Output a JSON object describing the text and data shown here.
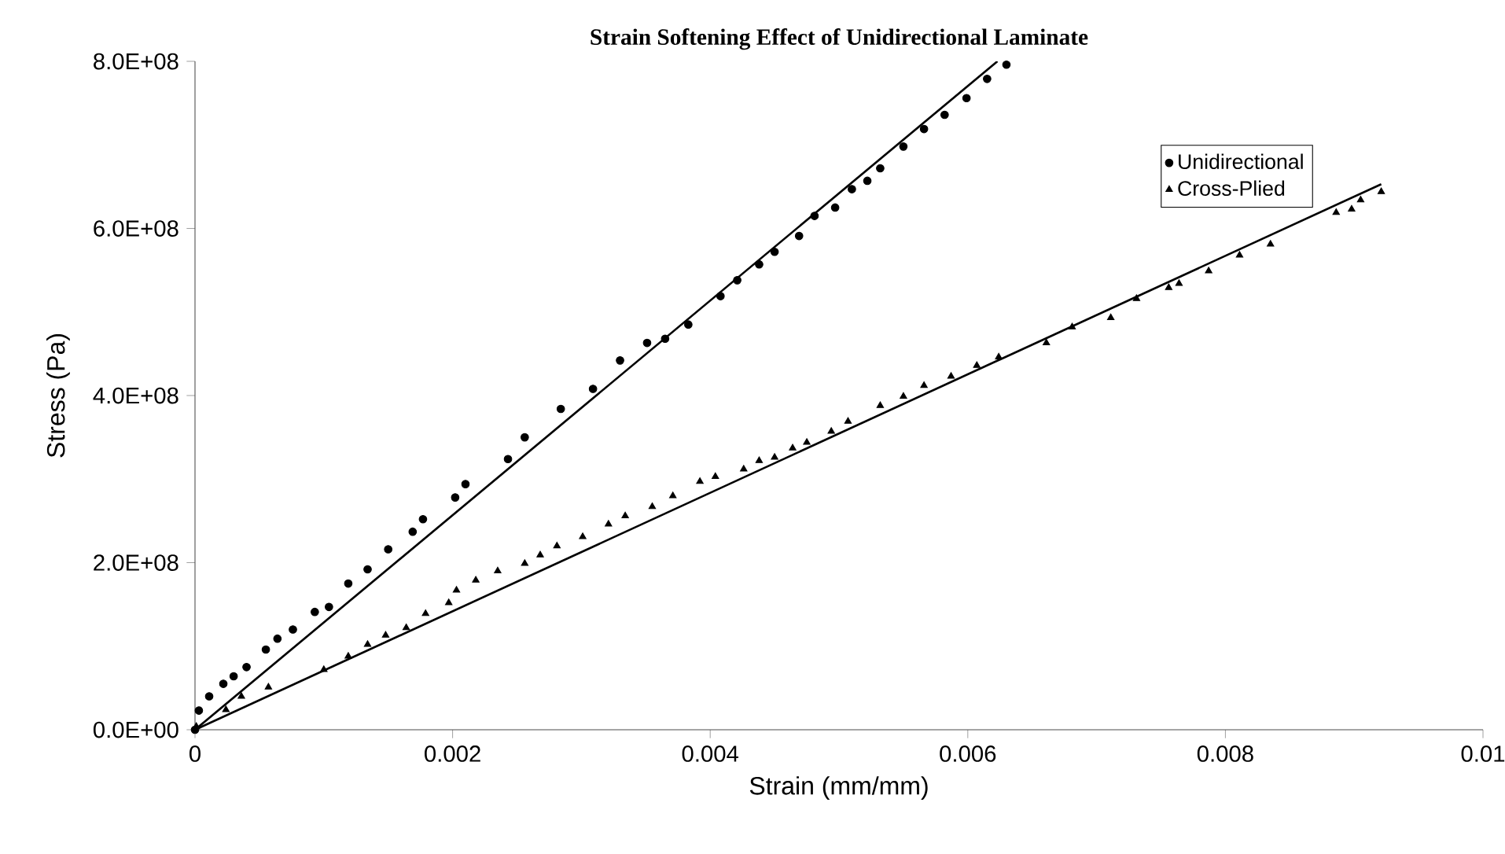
{
  "chart_data": {
    "type": "scatter",
    "title": "Strain Softening Effect of Unidirectional Laminate",
    "xlabel": "Strain (mm/mm)",
    "ylabel": "Stress (Pa)",
    "xlim": [
      0,
      0.01
    ],
    "ylim": [
      0,
      800000000
    ],
    "xticks": [
      0,
      0.002,
      0.004,
      0.006,
      0.008,
      0.01
    ],
    "yticks": [
      {
        "value": 0,
        "label": "0.0E+00"
      },
      {
        "value": 200000000,
        "label": "2.0E+08"
      },
      {
        "value": 400000000,
        "label": "4.0E+08"
      },
      {
        "value": 600000000,
        "label": "6.0E+08"
      },
      {
        "value": 800000000,
        "label": "8.0E+08"
      }
    ],
    "grid": false,
    "legend": "top right",
    "series": [
      {
        "name": "Unidirectional",
        "marker": "circle",
        "color": "#000000",
        "x": [
          0,
          3e-05,
          0.00011,
          0.00022,
          0.0003,
          0.0004,
          0.00055,
          0.00064,
          0.00076,
          0.00093,
          0.00104,
          0.00119,
          0.00134,
          0.0015,
          0.00169,
          0.00177,
          0.00202,
          0.0021,
          0.00243,
          0.00256,
          0.00284,
          0.00309,
          0.0033,
          0.00351,
          0.00365,
          0.00383,
          0.00408,
          0.00421,
          0.00438,
          0.0045,
          0.00469,
          0.00481,
          0.00497,
          0.0051,
          0.00522,
          0.00532,
          0.0055,
          0.00566,
          0.00582,
          0.00599,
          0.00615,
          0.0063
        ],
        "values": [
          0,
          23000000,
          40000000,
          55000000,
          64000000,
          75000000,
          96000000,
          109000000,
          120000000,
          141000000,
          147000000,
          175000000,
          192000000,
          216000000,
          237000000,
          252000000,
          278000000,
          294000000,
          324000000,
          350000000,
          384000000,
          408000000,
          442000000,
          463000000,
          468000000,
          485000000,
          519000000,
          538000000,
          557000000,
          572000000,
          591000000,
          615000000,
          625000000,
          647000000,
          657000000,
          672000000,
          698000000,
          719000000,
          736000000,
          756000000,
          779000000,
          796000000
        ]
      },
      {
        "name": "Cross-Plied",
        "marker": "triangle",
        "color": "#000000",
        "x": [
          1e-05,
          0.00024,
          0.00036,
          0.00057,
          0.001,
          0.00119,
          0.00134,
          0.00148,
          0.00164,
          0.00179,
          0.00197,
          0.00203,
          0.00218,
          0.00235,
          0.00256,
          0.00268,
          0.00281,
          0.00301,
          0.00321,
          0.00334,
          0.00355,
          0.00371,
          0.00392,
          0.00404,
          0.00426,
          0.00438,
          0.0045,
          0.00464,
          0.00475,
          0.00494,
          0.00507,
          0.00532,
          0.0055,
          0.00566,
          0.00587,
          0.00607,
          0.00624,
          0.00661,
          0.00681,
          0.00711,
          0.00731,
          0.00756,
          0.00764,
          0.00787,
          0.00811,
          0.00835,
          0.00886,
          0.00898,
          0.00905,
          0.00921
        ],
        "values": [
          4000000,
          24000000,
          40000000,
          51000000,
          72000000,
          88000000,
          102000000,
          113000000,
          122000000,
          139000000,
          152000000,
          167000000,
          179000000,
          190000000,
          199000000,
          209000000,
          220000000,
          231000000,
          246000000,
          256000000,
          267000000,
          280000000,
          297000000,
          303000000,
          312000000,
          322000000,
          326000000,
          337000000,
          344000000,
          357000000,
          369000000,
          388000000,
          399000000,
          412000000,
          423000000,
          436000000,
          446000000,
          463000000,
          482000000,
          493000000,
          516000000,
          529000000,
          534000000,
          549000000,
          568000000,
          581000000,
          619000000,
          623000000,
          634000000,
          644000000
        ]
      },
      {
        "type": "line",
        "marker": "none",
        "line_style": "solid",
        "color": "#000000",
        "x": [
          0,
          0.00623
        ],
        "values": [
          0,
          800000000
        ]
      },
      {
        "type": "line",
        "marker": "none",
        "line_style": "solid",
        "color": "#000000",
        "x": [
          0,
          0.00921
        ],
        "values": [
          0,
          653000000
        ]
      }
    ]
  }
}
